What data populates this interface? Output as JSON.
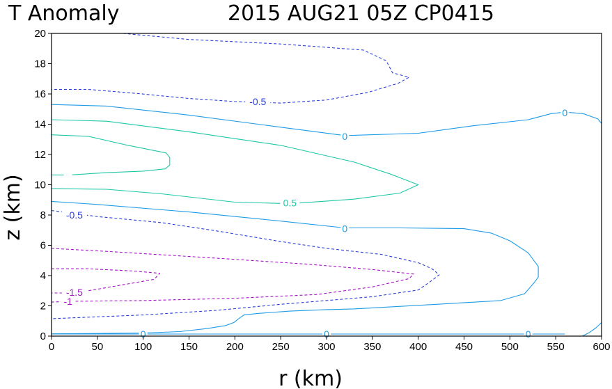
{
  "title": {
    "left": "T Anomaly",
    "right": "2015 AUG21 05Z   CP0415"
  },
  "colors": {
    "zero": "#1f9be6",
    "negative_small": "#2b3fd8",
    "positive": "#1ec8a6",
    "negative_large": "#a413c6"
  },
  "chart_data": {
    "type": "contour",
    "title": "T Anomaly",
    "xlabel": "r (km)",
    "ylabel": "z (km)",
    "xlim": [
      0,
      600
    ],
    "ylim": [
      0,
      20
    ],
    "x_ticks": [
      0,
      50,
      100,
      150,
      200,
      250,
      300,
      350,
      400,
      450,
      500,
      550,
      600
    ],
    "y_ticks": [
      0,
      2,
      4,
      6,
      8,
      10,
      12,
      14,
      16,
      18,
      20
    ],
    "grid": false,
    "contours": [
      {
        "level": -0.5,
        "color": "#2b3fd8",
        "dashed": true,
        "label": "-0.5",
        "points": [
          [
            78,
            20
          ],
          [
            150,
            19.6
          ],
          [
            250,
            19.3
          ],
          [
            340,
            18.9
          ],
          [
            365,
            18.2
          ],
          [
            372,
            17.4
          ],
          [
            390,
            17.1
          ],
          [
            378,
            16.7
          ],
          [
            345,
            16.1
          ],
          [
            300,
            15.6
          ],
          [
            250,
            15.4
          ],
          [
            200,
            15.5
          ],
          [
            150,
            15.7
          ],
          [
            90,
            16.05
          ],
          [
            40,
            16.3
          ],
          [
            0,
            16.3
          ]
        ],
        "labels": [
          {
            "x": 225,
            "y": 15.5
          }
        ]
      },
      {
        "level": 0,
        "color": "#1f9be6",
        "dashed": false,
        "label": "0",
        "points": [
          [
            0,
            15.3
          ],
          [
            60,
            15.2
          ],
          [
            150,
            14.6
          ],
          [
            250,
            13.8
          ],
          [
            320,
            13.25
          ],
          [
            400,
            13.4
          ],
          [
            460,
            13.9
          ],
          [
            520,
            14.3
          ],
          [
            545,
            14.7
          ],
          [
            560,
            14.8
          ],
          [
            580,
            14.7
          ],
          [
            596,
            14.35
          ],
          [
            600,
            14.05
          ]
        ],
        "labels": [
          {
            "x": 320,
            "y": 13.2
          },
          {
            "x": 560,
            "y": 14.75
          }
        ]
      },
      {
        "level": 0.5,
        "color": "#1ec8a6",
        "dashed": false,
        "label": "0.5",
        "points": [
          [
            0,
            14.3
          ],
          [
            60,
            14.2
          ],
          [
            150,
            13.5
          ],
          [
            250,
            12.6
          ],
          [
            330,
            11.5
          ],
          [
            370,
            10.7
          ],
          [
            400,
            10
          ],
          [
            380,
            9.45
          ],
          [
            330,
            9.05
          ],
          [
            260,
            8.75
          ],
          [
            200,
            8.85
          ],
          [
            120,
            9.4
          ],
          [
            60,
            9.7
          ],
          [
            0,
            9.75
          ]
        ],
        "labels": [
          {
            "x": 260,
            "y": 8.8
          }
        ]
      },
      {
        "level": 0.5,
        "color": "#1ec8a6",
        "dashed": false,
        "label": "",
        "points": [
          [
            0,
            13.3
          ],
          [
            40,
            13.2
          ],
          [
            80,
            12.65
          ],
          [
            125,
            12.1
          ],
          [
            129,
            11.8
          ],
          [
            129,
            11.3
          ],
          [
            124,
            11.05
          ],
          [
            100,
            10.9
          ],
          [
            60,
            10.8
          ],
          [
            20,
            10.65
          ],
          [
            0,
            10.65
          ]
        ],
        "labels": [
          {
            "x": 18,
            "y": 10.7
          }
        ]
      },
      {
        "level": 0,
        "color": "#1f9be6",
        "dashed": false,
        "label": "0",
        "points": [
          [
            0,
            8.9
          ],
          [
            50,
            8.7
          ],
          [
            150,
            8.2
          ],
          [
            250,
            7.6
          ],
          [
            320,
            7.15
          ],
          [
            380,
            7.15
          ],
          [
            450,
            7.1
          ],
          [
            480,
            6.8
          ],
          [
            500,
            6.3
          ],
          [
            520,
            5.5
          ],
          [
            531,
            4.6
          ],
          [
            531,
            3.9
          ],
          [
            526,
            3.5
          ],
          [
            516,
            2.8
          ],
          [
            490,
            2.35
          ],
          [
            420,
            2.1
          ],
          [
            330,
            1.8
          ],
          [
            300,
            1.75
          ],
          [
            260,
            1.65
          ],
          [
            225,
            1.5
          ],
          [
            210,
            1.4
          ],
          [
            203,
            1.1
          ],
          [
            199,
            0.9
          ],
          [
            190,
            0.7
          ],
          [
            170,
            0.5
          ],
          [
            140,
            0.3
          ],
          [
            100,
            0.2
          ],
          [
            0,
            0.15
          ]
        ],
        "labels": [
          {
            "x": 320,
            "y": 7.1
          }
        ]
      },
      {
        "level": -0.5,
        "color": "#2b3fd8",
        "dashed": true,
        "label": "-0.5",
        "points": [
          [
            0,
            8.3
          ],
          [
            50,
            7.9
          ],
          [
            120,
            7.5
          ],
          [
            180,
            6.95
          ],
          [
            250,
            6.25
          ],
          [
            300,
            5.8
          ],
          [
            360,
            5.4
          ],
          [
            400,
            4.85
          ],
          [
            415,
            4.45
          ],
          [
            423,
            4.05
          ],
          [
            412,
            3.55
          ],
          [
            400,
            3.05
          ],
          [
            350,
            2.6
          ],
          [
            250,
            2.1
          ],
          [
            180,
            1.7
          ],
          [
            100,
            1.4
          ],
          [
            40,
            1.25
          ],
          [
            0,
            1.15
          ]
        ],
        "labels": [
          {
            "x": 25,
            "y": 8
          }
        ]
      },
      {
        "level": -1,
        "color": "#a413c6",
        "dashed": true,
        "label": "-1",
        "points": [
          [
            0,
            5.8
          ],
          [
            60,
            5.6
          ],
          [
            180,
            5.15
          ],
          [
            280,
            4.75
          ],
          [
            350,
            4.4
          ],
          [
            395,
            4.1
          ],
          [
            390,
            3.8
          ],
          [
            350,
            3.25
          ],
          [
            290,
            2.75
          ],
          [
            200,
            2.5
          ],
          [
            100,
            2.35
          ],
          [
            20,
            2.3
          ],
          [
            0,
            2.25
          ]
        ],
        "labels": [
          {
            "x": 18,
            "y": 2.3
          }
        ]
      },
      {
        "level": -1.5,
        "color": "#a413c6",
        "dashed": true,
        "label": "-1.5",
        "points": [
          [
            0,
            4.45
          ],
          [
            40,
            4.45
          ],
          [
            90,
            4.3
          ],
          [
            118,
            4.15
          ],
          [
            112,
            3.75
          ],
          [
            88,
            3.5
          ],
          [
            55,
            3.15
          ],
          [
            40,
            3
          ],
          [
            20,
            2.85
          ],
          [
            0,
            2.85
          ]
        ],
        "labels": [
          {
            "x": 25,
            "y": 2.9
          }
        ]
      },
      {
        "level": 0,
        "color": "#1f9be6",
        "dashed": false,
        "label": "0",
        "points": [
          [
            0,
            0.14
          ],
          [
            100,
            0.14
          ],
          [
            200,
            0.14
          ],
          [
            300,
            0.14
          ],
          [
            400,
            0.14
          ],
          [
            500,
            0.14
          ],
          [
            520,
            0.14
          ],
          [
            560,
            0.14
          ]
        ],
        "labels": [
          {
            "x": 100,
            "y": 0.14
          },
          {
            "x": 300,
            "y": 0.14
          },
          {
            "x": 520,
            "y": 0.14
          }
        ]
      },
      {
        "level": 0,
        "color": "#1f9be6",
        "dashed": false,
        "label": "",
        "points": [
          [
            579,
            0
          ],
          [
            587,
            0.25
          ],
          [
            594,
            0.55
          ],
          [
            600,
            0.9
          ]
        ],
        "labels": []
      }
    ]
  }
}
